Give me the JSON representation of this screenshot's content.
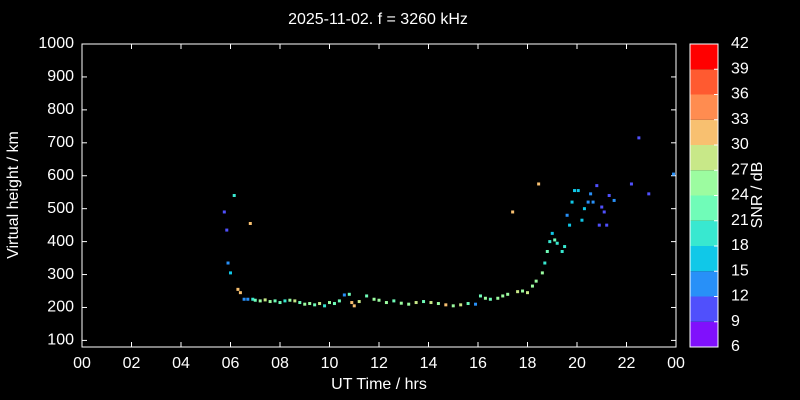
{
  "chart_data": {
    "type": "scatter",
    "title": "2025-11-02. f = 3260 kHz",
    "x_label": "UT Time / hrs",
    "y_label": "Virtual height / km",
    "colorbar_label": "SNR / dB",
    "xlim": [
      0,
      24
    ],
    "xticks": [
      {
        "value": 0,
        "label": "00"
      },
      {
        "value": 2,
        "label": "02"
      },
      {
        "value": 4,
        "label": "04"
      },
      {
        "value": 6,
        "label": "06"
      },
      {
        "value": 8,
        "label": "08"
      },
      10,
      12,
      14,
      16,
      18,
      20,
      22,
      {
        "value": 24,
        "label": "00"
      }
    ],
    "ylim": [
      80,
      1000
    ],
    "yticks": [
      100,
      200,
      300,
      400,
      500,
      600,
      700,
      800,
      900,
      1000
    ],
    "clim": [
      6,
      42
    ],
    "cticks": [
      6,
      9,
      12,
      15,
      18,
      21,
      24,
      27,
      30,
      33,
      36,
      39,
      42
    ],
    "ccolors": [
      "#8010fc",
      "#5050fc",
      "#2890f8",
      "#10c8e8",
      "#38e8d0",
      "#70fcb8",
      "#9cfca0",
      "#c8e888",
      "#f8c070",
      "#ff8c50",
      "#ff5a30",
      "#ff0000"
    ],
    "x": [
      5.75,
      5.85,
      5.9,
      6.0,
      6.15,
      6.3,
      6.4,
      6.55,
      6.7,
      6.8,
      6.9,
      7.0,
      7.2,
      7.4,
      7.6,
      7.8,
      8.0,
      8.2,
      8.4,
      8.6,
      8.8,
      9.0,
      9.2,
      9.4,
      9.6,
      9.8,
      10.0,
      10.2,
      10.4,
      10.6,
      10.8,
      10.9,
      11.0,
      11.2,
      11.5,
      11.8,
      12.0,
      12.3,
      12.6,
      12.9,
      13.2,
      13.5,
      13.8,
      14.1,
      14.4,
      14.7,
      15.0,
      15.3,
      15.6,
      15.9,
      16.1,
      16.3,
      16.5,
      16.8,
      17.0,
      17.2,
      17.4,
      17.6,
      17.8,
      18.0,
      18.2,
      18.35,
      18.45,
      18.6,
      18.7,
      18.8,
      18.9,
      19.0,
      19.1,
      19.2,
      19.4,
      19.5,
      19.6,
      19.7,
      19.8,
      19.9,
      20.05,
      20.2,
      20.3,
      20.45,
      20.55,
      20.65,
      20.8,
      20.9,
      21.0,
      21.1,
      21.2,
      21.3,
      21.5,
      22.2,
      22.5,
      22.9,
      23.9
    ],
    "y": [
      490,
      435,
      335,
      305,
      540,
      255,
      245,
      225,
      225,
      455,
      225,
      222,
      220,
      223,
      218,
      220,
      215,
      220,
      222,
      220,
      215,
      210,
      212,
      208,
      212,
      205,
      215,
      212,
      220,
      238,
      240,
      215,
      205,
      218,
      235,
      225,
      222,
      215,
      220,
      213,
      210,
      215,
      218,
      215,
      212,
      208,
      205,
      208,
      212,
      210,
      235,
      228,
      225,
      228,
      235,
      240,
      490,
      248,
      250,
      245,
      265,
      280,
      575,
      305,
      335,
      370,
      400,
      425,
      405,
      395,
      370,
      385,
      480,
      450,
      520,
      555,
      555,
      465,
      500,
      520,
      545,
      520,
      570,
      450,
      505,
      490,
      450,
      540,
      525,
      575,
      715,
      545,
      605
    ],
    "snr": [
      10,
      10,
      14,
      17,
      20,
      30,
      30,
      14,
      12,
      30,
      20,
      22,
      24,
      27,
      25,
      21,
      23,
      20,
      24,
      27,
      22,
      25,
      24,
      21,
      27,
      20,
      24,
      22,
      23,
      14,
      21,
      30,
      30,
      28,
      22,
      26,
      24,
      25,
      21,
      26,
      24,
      28,
      23,
      27,
      25,
      30,
      24,
      27,
      22,
      12,
      22,
      24,
      23,
      25,
      26,
      24,
      30,
      27,
      26,
      28,
      24,
      25,
      31,
      26,
      20,
      22,
      18,
      17,
      21,
      18,
      18,
      18,
      12,
      15,
      15,
      16,
      17,
      16,
      16,
      13,
      13,
      13,
      11,
      10,
      10,
      10,
      10,
      11,
      12,
      10,
      10,
      9,
      12
    ]
  }
}
